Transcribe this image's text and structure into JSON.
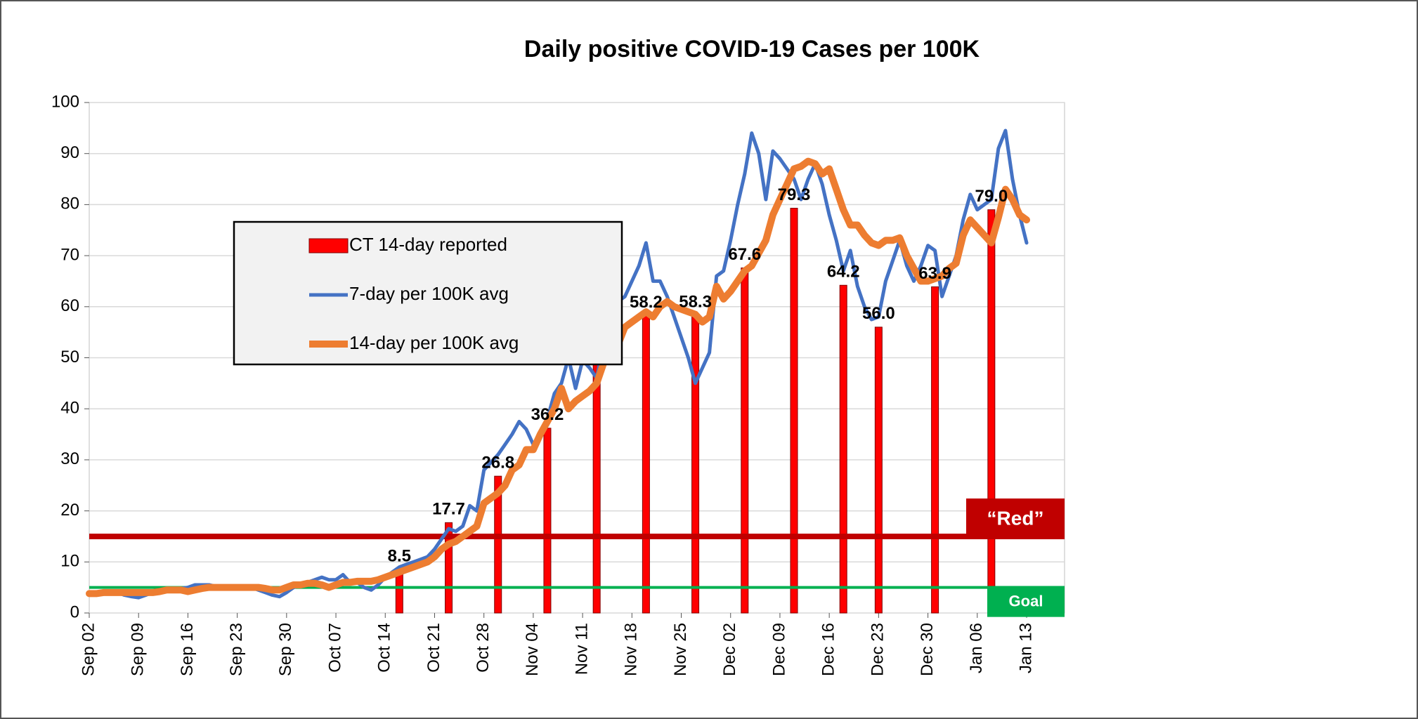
{
  "chart_data": {
    "type": "combo",
    "title": "Daily positive COVID-19 Cases per 100K",
    "categories": [
      "Sep 02",
      null,
      null,
      null,
      null,
      null,
      null,
      "Sep 09",
      null,
      null,
      null,
      null,
      null,
      null,
      "Sep 16",
      null,
      null,
      null,
      null,
      null,
      null,
      "Sep 23",
      null,
      null,
      null,
      null,
      null,
      null,
      "Sep 30",
      null,
      null,
      null,
      null,
      null,
      null,
      "Oct 07",
      null,
      null,
      null,
      null,
      null,
      null,
      "Oct 14",
      null,
      null,
      null,
      null,
      null,
      null,
      "Oct 21",
      null,
      null,
      null,
      null,
      null,
      null,
      "Oct 28",
      null,
      null,
      null,
      null,
      null,
      null,
      "Nov 04",
      null,
      null,
      null,
      null,
      null,
      null,
      "Nov 11",
      null,
      null,
      null,
      null,
      null,
      null,
      "Nov 18",
      null,
      null,
      null,
      null,
      null,
      null,
      "Nov 25",
      null,
      null,
      null,
      null,
      null,
      null,
      "Dec 02",
      null,
      null,
      null,
      null,
      null,
      null,
      "Dec 09",
      null,
      null,
      null,
      null,
      null,
      null,
      "Dec 16",
      null,
      null,
      null,
      null,
      null,
      null,
      "Dec 23",
      null,
      null,
      null,
      null,
      null,
      null,
      "Dec 30",
      null,
      null,
      null,
      null,
      null,
      null,
      "Jan 06",
      null,
      null,
      null,
      null,
      null,
      null,
      "Jan 13"
    ],
    "series": [
      {
        "name": "CT 14-day reported",
        "type": "bar",
        "color": "#ff0000",
        "values": [
          null,
          null,
          null,
          null,
          null,
          null,
          null,
          null,
          null,
          null,
          null,
          null,
          null,
          null,
          null,
          null,
          null,
          null,
          null,
          null,
          null,
          null,
          null,
          null,
          null,
          null,
          null,
          null,
          null,
          null,
          null,
          null,
          null,
          null,
          null,
          null,
          null,
          null,
          null,
          null,
          null,
          null,
          null,
          null,
          8.5,
          null,
          null,
          null,
          null,
          null,
          null,
          17.7,
          null,
          null,
          null,
          null,
          null,
          null,
          26.8,
          null,
          null,
          null,
          null,
          null,
          null,
          36.2,
          null,
          null,
          null,
          null,
          null,
          null,
          53.6,
          null,
          null,
          null,
          null,
          null,
          null,
          58.2,
          null,
          null,
          null,
          null,
          null,
          null,
          58.3,
          null,
          null,
          null,
          null,
          null,
          null,
          67.6,
          null,
          null,
          null,
          null,
          null,
          null,
          79.3,
          null,
          null,
          null,
          null,
          null,
          null,
          64.2,
          null,
          null,
          null,
          null,
          56.0,
          null,
          null,
          null,
          null,
          null,
          null,
          null,
          63.9,
          null,
          null,
          null,
          null,
          null,
          null,
          null,
          79.0,
          null,
          null,
          null,
          null,
          null
        ],
        "value_labels": [
          null,
          null,
          null,
          null,
          null,
          null,
          null,
          null,
          null,
          null,
          null,
          null,
          null,
          null,
          null,
          null,
          null,
          null,
          null,
          null,
          null,
          null,
          null,
          null,
          null,
          null,
          null,
          null,
          null,
          null,
          null,
          null,
          null,
          null,
          null,
          null,
          null,
          null,
          null,
          null,
          null,
          null,
          null,
          null,
          "8.5",
          null,
          null,
          null,
          null,
          null,
          null,
          "17.7",
          null,
          null,
          null,
          null,
          null,
          null,
          "26.8",
          null,
          null,
          null,
          null,
          null,
          null,
          "36.2",
          null,
          null,
          null,
          null,
          null,
          null,
          "53.6",
          null,
          null,
          null,
          null,
          null,
          null,
          "58.2",
          null,
          null,
          null,
          null,
          null,
          null,
          "58.3",
          null,
          null,
          null,
          null,
          null,
          null,
          "67.6",
          null,
          null,
          null,
          null,
          null,
          null,
          "79.3",
          null,
          null,
          null,
          null,
          null,
          null,
          "64.2",
          null,
          null,
          null,
          null,
          "56.0",
          null,
          null,
          null,
          null,
          null,
          null,
          null,
          "63.9",
          null,
          null,
          null,
          null,
          null,
          null,
          null,
          "79.0",
          null,
          null,
          null,
          null,
          null
        ]
      },
      {
        "name": "7-day per 100K avg",
        "type": "line",
        "color": "#4472c4",
        "values": [
          4,
          4,
          4.2,
          4,
          4,
          3.5,
          3.2,
          3,
          3.5,
          4,
          4.2,
          4.5,
          4.5,
          4.8,
          5,
          5.5,
          5.5,
          5.5,
          5.2,
          5,
          5,
          5,
          5,
          5,
          4.5,
          4,
          3.5,
          3.2,
          4,
          5,
          5.5,
          6,
          6.5,
          7,
          6.5,
          6.5,
          7.5,
          6,
          6,
          5,
          4.5,
          5.5,
          7,
          8,
          9,
          9.5,
          10,
          10.5,
          11,
          12.5,
          14.5,
          16.5,
          16,
          17,
          21,
          20,
          28,
          29.5,
          31,
          33,
          35,
          37.5,
          36,
          33,
          35,
          38,
          43,
          45,
          50,
          44,
          49.5,
          48,
          46,
          53,
          56,
          61,
          62,
          65,
          68,
          72.5,
          65,
          65,
          62,
          58,
          54,
          50,
          45,
          48,
          51,
          66,
          67,
          73,
          80,
          86,
          94,
          90,
          81,
          90.5,
          89,
          87,
          85,
          81,
          85,
          88,
          84,
          78,
          73,
          67,
          71,
          64,
          60,
          57.5,
          58,
          65,
          69,
          73,
          68,
          65,
          68,
          72,
          71,
          62,
          66,
          70,
          77,
          82,
          79,
          80,
          81,
          91,
          94.5,
          85,
          78,
          72.5
        ]
      },
      {
        "name": "14-day per 100K avg",
        "type": "line",
        "color": "#ed7d31",
        "values": [
          3.8,
          3.8,
          4,
          4,
          4,
          4,
          4,
          4,
          4,
          4,
          4.2,
          4.5,
          4.5,
          4.5,
          4.2,
          4.5,
          4.8,
          5,
          5,
          5,
          5,
          5,
          5,
          5,
          5,
          4.8,
          4.5,
          4.5,
          5,
          5.5,
          5.5,
          5.8,
          5.8,
          5.5,
          5,
          5.5,
          6,
          6,
          6.2,
          6.2,
          6.2,
          6.5,
          7,
          7.5,
          8,
          8.5,
          9,
          9.5,
          10,
          11,
          12.5,
          13.5,
          14,
          15,
          16,
          17,
          21.5,
          22.5,
          23.5,
          25,
          28,
          29,
          32,
          32,
          35,
          37.5,
          40,
          44,
          40,
          41.5,
          42.5,
          43.5,
          45,
          49,
          52.5,
          52.5,
          56,
          57,
          58,
          59,
          58,
          60,
          61,
          60,
          59.5,
          59,
          58.5,
          57,
          58,
          64,
          61.5,
          63,
          65,
          67,
          68,
          70.5,
          73,
          78,
          81,
          84,
          87,
          87.5,
          88.5,
          88,
          86,
          87,
          83,
          79,
          76,
          76,
          74,
          72.5,
          72,
          73,
          73,
          73.5,
          70,
          67.5,
          65,
          65,
          65.5,
          66,
          67.5,
          68.5,
          74,
          77,
          75.5,
          74,
          72.5,
          77.5,
          83,
          81,
          78,
          77
        ]
      }
    ],
    "reference_lines": [
      {
        "label": "“Red”",
        "value": 15,
        "color": "#c00000"
      },
      {
        "label": "Goal",
        "value": 5,
        "color": "#00b050"
      }
    ],
    "ylim": [
      0,
      100
    ],
    "yticks": [
      0,
      10,
      20,
      30,
      40,
      50,
      60,
      70,
      80,
      90,
      100
    ],
    "grid": true,
    "legend": "upper left"
  }
}
